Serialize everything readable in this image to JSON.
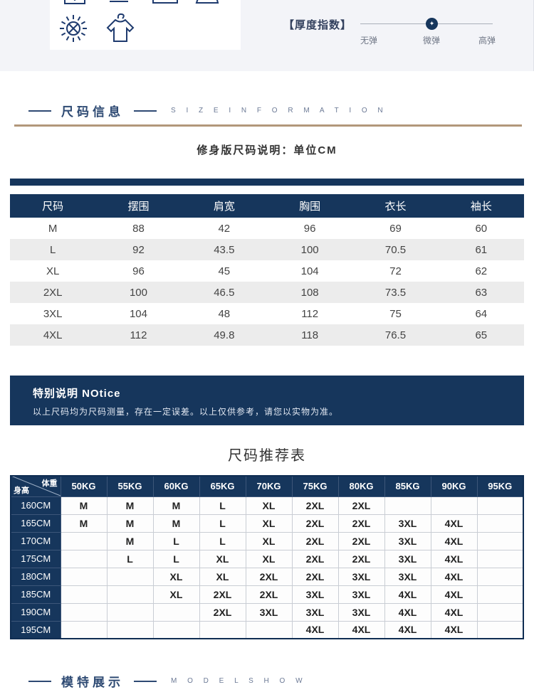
{
  "care": {
    "icons": [
      "basin-icon",
      "drip-dry-icon",
      "tray-icon",
      "iron-icon",
      "no-sun-exposure-icon",
      "shirt-hanger-icon"
    ]
  },
  "thickness": {
    "label": "【厚度指数】",
    "options": [
      "无弹",
      "微弹",
      "高弹"
    ],
    "selected": "微弹",
    "marker_glyph": "✦"
  },
  "section_size": {
    "title": "尺码信息",
    "subtitle": "S I Z E   I N F O R M A T I O N"
  },
  "fit_note": "修身版尺码说明：单位CM",
  "size_table": {
    "headers": [
      "尺码",
      "摆围",
      "肩宽",
      "胸围",
      "衣长",
      "袖长"
    ],
    "rows": [
      [
        "M",
        "88",
        "42",
        "96",
        "69",
        "60"
      ],
      [
        "L",
        "92",
        "43.5",
        "100",
        "70.5",
        "61"
      ],
      [
        "XL",
        "96",
        "45",
        "104",
        "72",
        "62"
      ],
      [
        "2XL",
        "100",
        "46.5",
        "108",
        "73.5",
        "63"
      ],
      [
        "3XL",
        "104",
        "48",
        "112",
        "75",
        "64"
      ],
      [
        "4XL",
        "112",
        "49.8",
        "118",
        "76.5",
        "65"
      ]
    ]
  },
  "notice": {
    "title": "特别说明 NOtice",
    "body": "以上尺码均为尺码测量，存在一定误差。以上仅供参考，请您以实物为准。"
  },
  "recommend": {
    "title": "尺码推荐表",
    "corner_top": "体重",
    "corner_bottom": "身高",
    "weights": [
      "50KG",
      "55KG",
      "60KG",
      "65KG",
      "70KG",
      "75KG",
      "80KG",
      "85KG",
      "90KG",
      "95KG"
    ],
    "rows": [
      {
        "height": "160CM",
        "cells": [
          "M",
          "M",
          "M",
          "L",
          "XL",
          "2XL",
          "2XL",
          "",
          "",
          ""
        ]
      },
      {
        "height": "165CM",
        "cells": [
          "M",
          "M",
          "M",
          "L",
          "XL",
          "2XL",
          "2XL",
          "3XL",
          "4XL",
          ""
        ]
      },
      {
        "height": "170CM",
        "cells": [
          "",
          "M",
          "L",
          "L",
          "XL",
          "2XL",
          "2XL",
          "3XL",
          "4XL",
          ""
        ]
      },
      {
        "height": "175CM",
        "cells": [
          "",
          "L",
          "L",
          "XL",
          "XL",
          "2XL",
          "2XL",
          "3XL",
          "4XL",
          ""
        ]
      },
      {
        "height": "180CM",
        "cells": [
          "",
          "",
          "XL",
          "XL",
          "2XL",
          "2XL",
          "3XL",
          "3XL",
          "4XL",
          ""
        ]
      },
      {
        "height": "185CM",
        "cells": [
          "",
          "",
          "XL",
          "2XL",
          "2XL",
          "3XL",
          "3XL",
          "4XL",
          "4XL",
          ""
        ]
      },
      {
        "height": "190CM",
        "cells": [
          "",
          "",
          "",
          "2XL",
          "3XL",
          "3XL",
          "3XL",
          "4XL",
          "4XL",
          ""
        ]
      },
      {
        "height": "195CM",
        "cells": [
          "",
          "",
          "",
          "",
          "",
          "4XL",
          "4XL",
          "4XL",
          "4XL",
          ""
        ]
      }
    ]
  },
  "section_model": {
    "title": "模特展示",
    "subtitle": "M O D E L   S H O W"
  },
  "colors": {
    "navy": "#16365c",
    "tan": "#b2977a",
    "row_alt": "#ececec",
    "top_bg": "#f3f4f8"
  }
}
